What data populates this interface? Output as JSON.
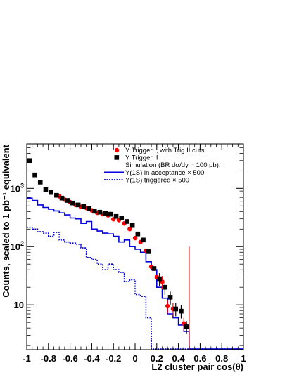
{
  "chart_data": {
    "type": "scatter",
    "xlabel": "L2 cluster pair cos(θ)",
    "ylabel": "Counts, scaled to 1 pb⁻¹ equivalent",
    "xlim": [
      -1,
      1
    ],
    "ylim": [
      1.7,
      5800
    ],
    "yscale": "log",
    "x_ticks": [
      "-1",
      "-0.8",
      "-0.6",
      "-0.4",
      "-0.2",
      "0",
      "0.2",
      "0.4",
      "0.6",
      "0.8",
      "1"
    ],
    "y_ticks": [
      {
        "label": "10",
        "value": 10
      },
      {
        "label": "10",
        "sup": "2",
        "value": 100
      },
      {
        "label": "10",
        "sup": "3",
        "value": 1000
      }
    ],
    "legend_position": "top-right",
    "cut_line_x": 0.5,
    "colors": {
      "trig1": "#ff0000",
      "trig2": "#000000",
      "sim": "#0000dd",
      "cut": "#ff5555"
    },
    "series": [
      {
        "name": "Υ Trigger I, with Trig II cuts",
        "style": "red-circle",
        "points": [
          {
            "x": -0.7,
            "y": 730
          },
          {
            "x": -0.65,
            "y": 640
          },
          {
            "x": -0.6,
            "y": 580
          },
          {
            "x": -0.55,
            "y": 520
          },
          {
            "x": -0.5,
            "y": 480
          },
          {
            "x": -0.45,
            "y": 460
          },
          {
            "x": -0.4,
            "y": 420
          },
          {
            "x": -0.35,
            "y": 380
          },
          {
            "x": -0.3,
            "y": 360
          },
          {
            "x": -0.25,
            "y": 345
          },
          {
            "x": -0.2,
            "y": 295
          },
          {
            "x": -0.15,
            "y": 285
          },
          {
            "x": -0.1,
            "y": 250
          },
          {
            "x": -0.05,
            "y": 200
          },
          {
            "x": 0.0,
            "y": 140
          },
          {
            "x": 0.05,
            "y": 120
          },
          {
            "x": 0.1,
            "y": 85
          },
          {
            "x": 0.15,
            "y": 45
          },
          {
            "x": 0.2,
            "y": 30
          },
          {
            "x": 0.25,
            "y": 25
          },
          {
            "x": 0.3,
            "y": 9.5
          },
          {
            "x": 0.35,
            "y": 8.5
          },
          {
            "x": 0.45,
            "y": 4.8
          }
        ]
      },
      {
        "name": "Υ Trigger II",
        "style": "black-square",
        "points": [
          {
            "x": -0.975,
            "y": 3000
          },
          {
            "x": -0.925,
            "y": 1700
          },
          {
            "x": -0.875,
            "y": 1280
          },
          {
            "x": -0.825,
            "y": 950
          },
          {
            "x": -0.775,
            "y": 850
          },
          {
            "x": -0.725,
            "y": 760
          },
          {
            "x": -0.675,
            "y": 680
          },
          {
            "x": -0.625,
            "y": 620
          },
          {
            "x": -0.575,
            "y": 560
          },
          {
            "x": -0.525,
            "y": 520
          },
          {
            "x": -0.475,
            "y": 490
          },
          {
            "x": -0.425,
            "y": 450
          },
          {
            "x": -0.375,
            "y": 405
          },
          {
            "x": -0.325,
            "y": 390
          },
          {
            "x": -0.275,
            "y": 375
          },
          {
            "x": -0.225,
            "y": 360
          },
          {
            "x": -0.175,
            "y": 330
          },
          {
            "x": -0.125,
            "y": 310
          },
          {
            "x": -0.075,
            "y": 270
          },
          {
            "x": -0.025,
            "y": 230
          },
          {
            "x": 0.025,
            "y": 165
          },
          {
            "x": 0.075,
            "y": 130
          },
          {
            "x": 0.125,
            "y": 82
          },
          {
            "x": 0.175,
            "y": 42
          },
          {
            "x": 0.225,
            "y": 28
          },
          {
            "x": 0.275,
            "y": 20
          },
          {
            "x": 0.325,
            "y": 13.5
          },
          {
            "x": 0.375,
            "y": 8.5
          },
          {
            "x": 0.425,
            "y": 7.8
          },
          {
            "x": 0.475,
            "y": 4.2
          }
        ]
      },
      {
        "name": "Υ(1S) in acceptance × 500",
        "style": "blue-solid-hist",
        "bin_edges": [
          -1,
          -0.95,
          -0.9,
          -0.85,
          -0.8,
          -0.75,
          -0.7,
          -0.65,
          -0.6,
          -0.55,
          -0.5,
          -0.45,
          -0.4,
          -0.35,
          -0.3,
          -0.25,
          -0.2,
          -0.15,
          -0.1,
          -0.05,
          0,
          0.05,
          0.1,
          0.15,
          0.2,
          0.25,
          0.3,
          0.35,
          0.4,
          0.45,
          0.5,
          1
        ],
        "values": [
          680,
          620,
          520,
          470,
          440,
          410,
          380,
          350,
          310,
          300,
          250,
          270,
          200,
          185,
          170,
          165,
          150,
          120,
          130,
          100,
          90,
          80,
          55,
          40,
          20,
          13,
          7,
          6,
          4.5,
          3.5,
          1.75
        ]
      },
      {
        "name": "Υ(1S) triggered × 500",
        "style": "blue-dotted-hist",
        "bin_edges": [
          -1,
          -0.95,
          -0.9,
          -0.85,
          -0.8,
          -0.75,
          -0.7,
          -0.65,
          -0.6,
          -0.55,
          -0.5,
          -0.45,
          -0.4,
          -0.35,
          -0.3,
          -0.25,
          -0.2,
          -0.15,
          -0.1,
          -0.05,
          0,
          0.05,
          0.1,
          0.15,
          0.2,
          0.25,
          0.3,
          1
        ],
        "values": [
          215,
          200,
          180,
          170,
          150,
          175,
          130,
          120,
          115,
          110,
          95,
          65,
          60,
          50,
          40,
          50,
          40,
          36,
          25,
          27,
          15,
          14,
          6,
          1.75,
          1.75,
          1.75,
          1.75
        ]
      }
    ],
    "legend_note": "Simulation (BR dσ/dy = 100 pb):"
  }
}
